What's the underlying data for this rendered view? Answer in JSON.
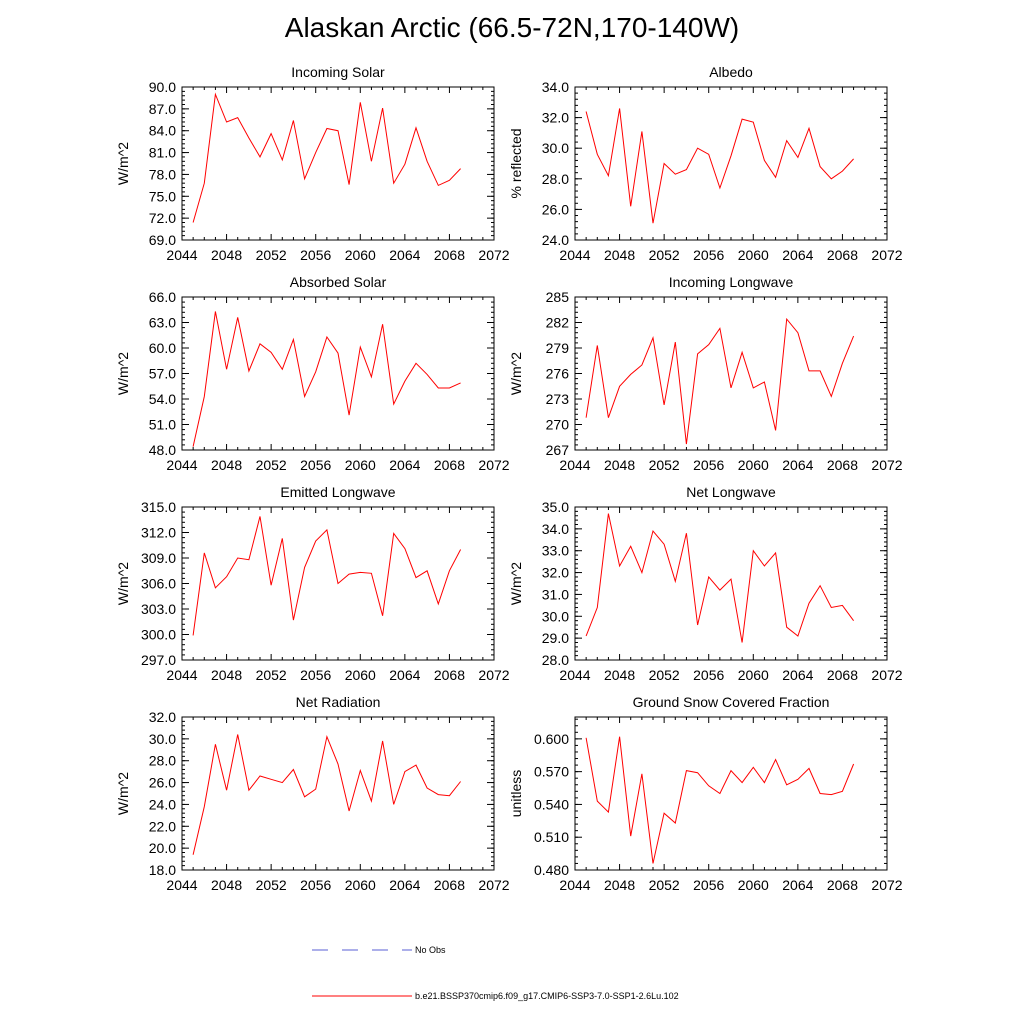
{
  "figure": {
    "title": "Alaskan Arctic (66.5-72N,170-140W)"
  },
  "legend": {
    "obs_label": "No Obs",
    "obs_color": "#5a5fd6",
    "model_label": "b.e21.BSSP370cmip6.f09_g17.CMIP6-SSP3-7.0-SSP1-2.6Lu.102",
    "model_color": "#ff0000"
  },
  "chart_data": [
    {
      "type": "line",
      "title": "Incoming Solar",
      "ylabel": "W/m^2",
      "xlim": [
        2044,
        2072
      ],
      "xticks": [
        "2044",
        "2048",
        "2052",
        "2056",
        "2060",
        "2064",
        "2068",
        "2072"
      ],
      "ylim": [
        69,
        90
      ],
      "yticks": [
        "69.0",
        "72.0",
        "75.0",
        "78.0",
        "81.0",
        "84.0",
        "87.0",
        "90.0"
      ],
      "x": [
        2045,
        2046,
        2047,
        2048,
        2049,
        2050,
        2051,
        2052,
        2053,
        2054,
        2055,
        2056,
        2057,
        2058,
        2059,
        2060,
        2061,
        2062,
        2063,
        2064,
        2065,
        2066,
        2067,
        2068,
        2069
      ],
      "series": [
        {
          "values": [
            71.4,
            76.8,
            89.0,
            85.2,
            85.8,
            83.0,
            80.4,
            83.6,
            80.0,
            85.4,
            77.4,
            81.0,
            84.3,
            84.0,
            76.6,
            87.9,
            79.8,
            87.1,
            76.8,
            79.4,
            84.4,
            79.8,
            76.5,
            77.2,
            78.8
          ]
        }
      ]
    },
    {
      "type": "line",
      "title": "Albedo",
      "ylabel": "% reflected",
      "xlim": [
        2044,
        2072
      ],
      "xticks": [
        "2044",
        "2048",
        "2052",
        "2056",
        "2060",
        "2064",
        "2068",
        "2072"
      ],
      "ylim": [
        24,
        34
      ],
      "yticks": [
        "24.0",
        "26.0",
        "28.0",
        "30.0",
        "32.0",
        "34.0"
      ],
      "x": [
        2045,
        2046,
        2047,
        2048,
        2049,
        2050,
        2051,
        2052,
        2053,
        2054,
        2055,
        2056,
        2057,
        2058,
        2059,
        2060,
        2061,
        2062,
        2063,
        2064,
        2065,
        2066,
        2067,
        2068,
        2069
      ],
      "series": [
        {
          "values": [
            32.4,
            29.6,
            28.2,
            32.6,
            26.2,
            31.1,
            25.1,
            29.0,
            28.3,
            28.6,
            30.0,
            29.6,
            27.4,
            29.5,
            31.9,
            31.7,
            29.2,
            28.1,
            30.5,
            29.4,
            31.3,
            28.8,
            28.0,
            28.5,
            29.3
          ]
        }
      ]
    },
    {
      "type": "line",
      "title": "Absorbed Solar",
      "ylabel": "W/m^2",
      "xlim": [
        2044,
        2072
      ],
      "xticks": [
        "2044",
        "2048",
        "2052",
        "2056",
        "2060",
        "2064",
        "2068",
        "2072"
      ],
      "ylim": [
        48,
        66
      ],
      "yticks": [
        "48.0",
        "51.0",
        "54.0",
        "57.0",
        "60.0",
        "63.0",
        "66.0"
      ],
      "x": [
        2045,
        2046,
        2047,
        2048,
        2049,
        2050,
        2051,
        2052,
        2053,
        2054,
        2055,
        2056,
        2057,
        2058,
        2059,
        2060,
        2061,
        2062,
        2063,
        2064,
        2065,
        2066,
        2067,
        2068,
        2069
      ],
      "series": [
        {
          "values": [
            48.4,
            54.3,
            64.3,
            57.5,
            63.6,
            57.3,
            60.5,
            59.5,
            57.5,
            61.0,
            54.3,
            57.2,
            61.3,
            59.4,
            52.1,
            60.1,
            56.6,
            62.8,
            53.4,
            56.1,
            58.2,
            56.9,
            55.3,
            55.3,
            55.9
          ]
        }
      ]
    },
    {
      "type": "line",
      "title": "Incoming Longwave",
      "ylabel": "W/m^2",
      "xlim": [
        2044,
        2072
      ],
      "xticks": [
        "2044",
        "2048",
        "2052",
        "2056",
        "2060",
        "2064",
        "2068",
        "2072"
      ],
      "ylim": [
        267,
        285
      ],
      "yticks": [
        "267",
        "270",
        "273",
        "276",
        "279",
        "282",
        "285"
      ],
      "x": [
        2045,
        2046,
        2047,
        2048,
        2049,
        2050,
        2051,
        2052,
        2053,
        2054,
        2055,
        2056,
        2057,
        2058,
        2059,
        2060,
        2061,
        2062,
        2063,
        2064,
        2065,
        2066,
        2067,
        2068,
        2069
      ],
      "series": [
        {
          "values": [
            270.8,
            279.3,
            270.8,
            274.5,
            275.9,
            277.0,
            280.2,
            272.3,
            279.7,
            267.7,
            278.3,
            279.4,
            281.3,
            274.3,
            278.5,
            274.3,
            275.0,
            269.3,
            282.4,
            280.8,
            276.3,
            276.3,
            273.3,
            277.2,
            280.4
          ]
        }
      ]
    },
    {
      "type": "line",
      "title": "Emitted Longwave",
      "ylabel": "W/m^2",
      "xlim": [
        2044,
        2072
      ],
      "xticks": [
        "2044",
        "2048",
        "2052",
        "2056",
        "2060",
        "2064",
        "2068",
        "2072"
      ],
      "ylim": [
        297,
        315
      ],
      "yticks": [
        "297.0",
        "300.0",
        "303.0",
        "306.0",
        "309.0",
        "312.0",
        "315.0"
      ],
      "x": [
        2045,
        2046,
        2047,
        2048,
        2049,
        2050,
        2051,
        2052,
        2053,
        2054,
        2055,
        2056,
        2057,
        2058,
        2059,
        2060,
        2061,
        2062,
        2063,
        2064,
        2065,
        2066,
        2067,
        2068,
        2069
      ],
      "series": [
        {
          "values": [
            299.9,
            309.6,
            305.5,
            306.8,
            309.0,
            308.8,
            313.9,
            305.8,
            311.3,
            301.7,
            307.9,
            311.0,
            312.3,
            306.0,
            307.1,
            307.3,
            307.2,
            302.2,
            311.9,
            310.1,
            306.7,
            307.5,
            303.6,
            307.5,
            310.0
          ]
        }
      ]
    },
    {
      "type": "line",
      "title": "Net Longwave",
      "ylabel": "W/m^2",
      "xlim": [
        2044,
        2072
      ],
      "xticks": [
        "2044",
        "2048",
        "2052",
        "2056",
        "2060",
        "2064",
        "2068",
        "2072"
      ],
      "ylim": [
        28,
        35
      ],
      "yticks": [
        "28.0",
        "29.0",
        "30.0",
        "31.0",
        "32.0",
        "33.0",
        "34.0",
        "35.0"
      ],
      "x": [
        2045,
        2046,
        2047,
        2048,
        2049,
        2050,
        2051,
        2052,
        2053,
        2054,
        2055,
        2056,
        2057,
        2058,
        2059,
        2060,
        2061,
        2062,
        2063,
        2064,
        2065,
        2066,
        2067,
        2068,
        2069
      ],
      "series": [
        {
          "values": [
            29.1,
            30.4,
            34.7,
            32.3,
            33.2,
            32.0,
            33.9,
            33.3,
            31.6,
            33.8,
            29.6,
            31.8,
            31.2,
            31.7,
            28.8,
            33.0,
            32.3,
            32.9,
            29.5,
            29.1,
            30.6,
            31.4,
            30.4,
            30.5,
            29.8
          ]
        }
      ]
    },
    {
      "type": "line",
      "title": "Net Radiation",
      "ylabel": "W/m^2",
      "xlim": [
        2044,
        2072
      ],
      "xticks": [
        "2044",
        "2048",
        "2052",
        "2056",
        "2060",
        "2064",
        "2068",
        "2072"
      ],
      "ylim": [
        18,
        32
      ],
      "yticks": [
        "18.0",
        "20.0",
        "22.0",
        "24.0",
        "26.0",
        "28.0",
        "30.0",
        "32.0"
      ],
      "x": [
        2045,
        2046,
        2047,
        2048,
        2049,
        2050,
        2051,
        2052,
        2053,
        2054,
        2055,
        2056,
        2057,
        2058,
        2059,
        2060,
        2061,
        2062,
        2063,
        2064,
        2065,
        2066,
        2067,
        2068,
        2069
      ],
      "series": [
        {
          "values": [
            19.4,
            23.8,
            29.5,
            25.3,
            30.4,
            25.3,
            26.6,
            26.3,
            26.0,
            27.2,
            24.7,
            25.4,
            30.2,
            27.7,
            23.4,
            27.1,
            24.3,
            29.8,
            24.0,
            27.0,
            27.6,
            25.5,
            24.9,
            24.8,
            26.1
          ]
        }
      ]
    },
    {
      "type": "line",
      "title": "Ground Snow Covered Fraction",
      "ylabel": "unitless",
      "xlim": [
        2044,
        2072
      ],
      "xticks": [
        "2044",
        "2048",
        "2052",
        "2056",
        "2060",
        "2064",
        "2068",
        "2072"
      ],
      "ylim": [
        0.48,
        0.62
      ],
      "yticks": [
        "0.480",
        "0.510",
        "0.540",
        "0.570",
        "0.600"
      ],
      "x": [
        2045,
        2046,
        2047,
        2048,
        2049,
        2050,
        2051,
        2052,
        2053,
        2054,
        2055,
        2056,
        2057,
        2058,
        2059,
        2060,
        2061,
        2062,
        2063,
        2064,
        2065,
        2066,
        2067,
        2068,
        2069
      ],
      "series": [
        {
          "values": [
            0.601,
            0.543,
            0.533,
            0.602,
            0.511,
            0.568,
            0.486,
            0.532,
            0.523,
            0.571,
            0.569,
            0.557,
            0.55,
            0.571,
            0.56,
            0.574,
            0.56,
            0.581,
            0.558,
            0.563,
            0.573,
            0.55,
            0.549,
            0.552,
            0.577
          ]
        }
      ]
    }
  ]
}
